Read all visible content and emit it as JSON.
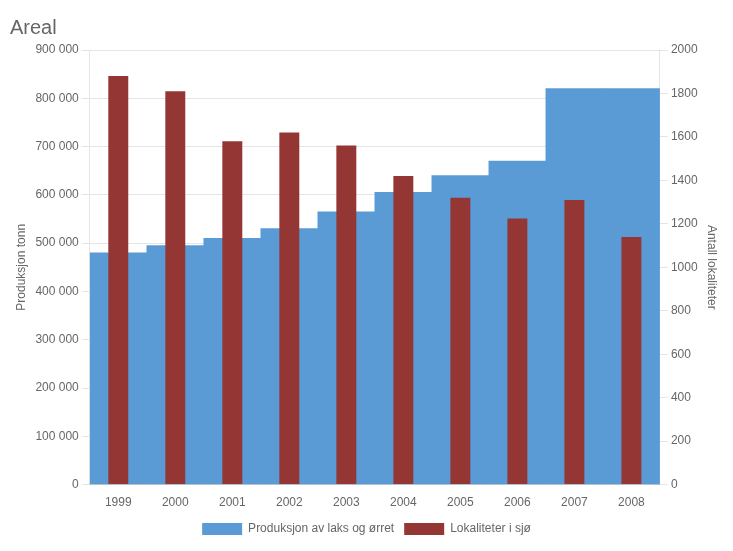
{
  "chart_data": {
    "type": "bar",
    "title": "Areal",
    "categories": [
      "1999",
      "2000",
      "2001",
      "2002",
      "2003",
      "2004",
      "2005",
      "2006",
      "2007",
      "2008"
    ],
    "series": [
      {
        "name": "Produksjon av laks og ørret",
        "color": "#5B9BD5",
        "values": [
          480000,
          495000,
          510000,
          530000,
          565000,
          605000,
          640000,
          670000,
          820000,
          820000
        ]
      },
      {
        "name": "Lokaliteter i sjø",
        "color": "#943634",
        "axis": "y2",
        "values": [
          1880,
          1810,
          1580,
          1620,
          1560,
          1420,
          1320,
          1225,
          1310,
          1140
        ]
      }
    ],
    "ylabel": "Produksjon tonn",
    "y2label": "Antall lokaliteter",
    "ylim": [
      0,
      900000
    ],
    "yticks": [
      0,
      {
        "value": 100000,
        "label": "100 000"
      },
      {
        "value": 200000,
        "label": "200 000"
      },
      {
        "value": 300000,
        "label": "300 000"
      },
      {
        "value": 400000,
        "label": "400 000"
      },
      {
        "value": 500000,
        "label": "500 000"
      },
      {
        "value": 600000,
        "label": "600 000"
      },
      {
        "value": 700000,
        "label": "700 000"
      },
      {
        "value": 800000,
        "label": "800 000"
      },
      {
        "value": 900000,
        "label": "900 000"
      }
    ],
    "y2lim": [
      0,
      2000
    ],
    "y2ticks": [
      0,
      200,
      400,
      600,
      800,
      1000,
      1200,
      1400,
      1600,
      1800,
      2000
    ],
    "grid": true,
    "legend": "bottom"
  }
}
